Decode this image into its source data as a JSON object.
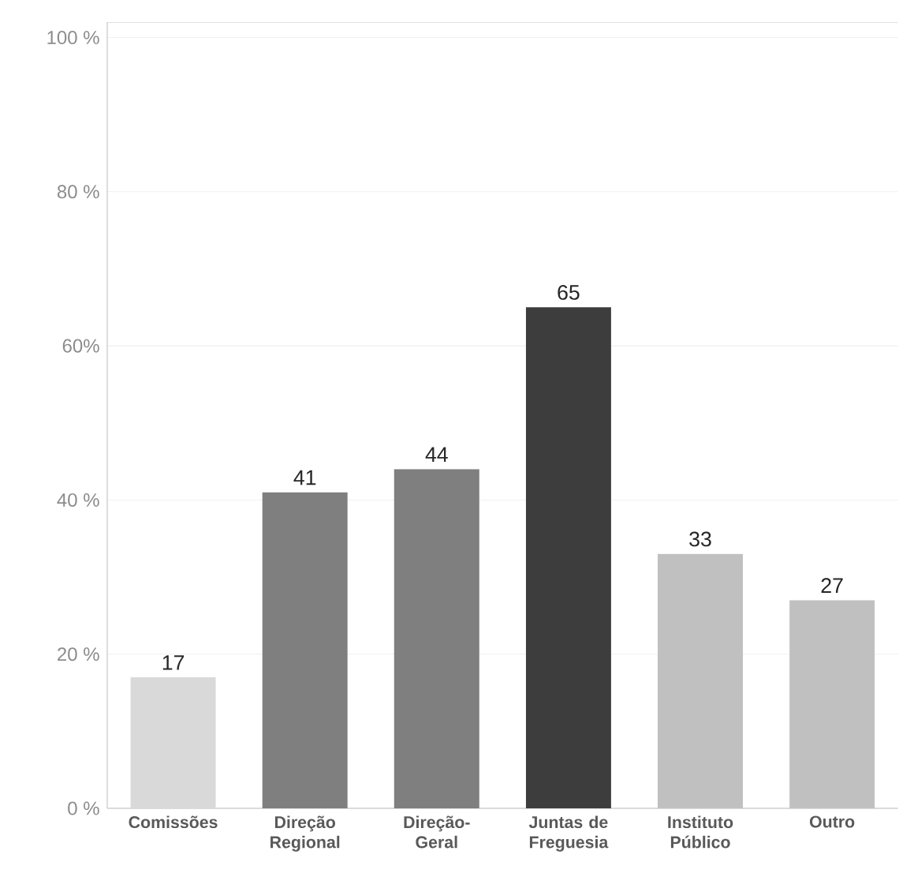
{
  "chart_data": {
    "type": "bar",
    "categories": [
      "Comissões",
      "Direção Regional",
      "Direção-Geral",
      "Juntas de Freguesia",
      "Instituto Público",
      "Outro"
    ],
    "values": [
      17,
      41,
      44,
      65,
      33,
      27
    ],
    "colors": [
      "#d9d9d9",
      "#7f7f7f",
      "#7f7f7f",
      "#3d3d3d",
      "#c0c0c0",
      "#c0c0c0"
    ],
    "data_labels": true,
    "ylim": [
      0,
      102
    ],
    "yticks": [
      {
        "value": 0,
        "label": "0 %"
      },
      {
        "value": 20,
        "label": "20 %"
      },
      {
        "value": 40,
        "label": "40 %"
      },
      {
        "value": 60,
        "label": "60%"
      },
      {
        "value": 80,
        "label": "80 %"
      },
      {
        "value": 100,
        "label": "100 %"
      }
    ],
    "grid": "y"
  }
}
